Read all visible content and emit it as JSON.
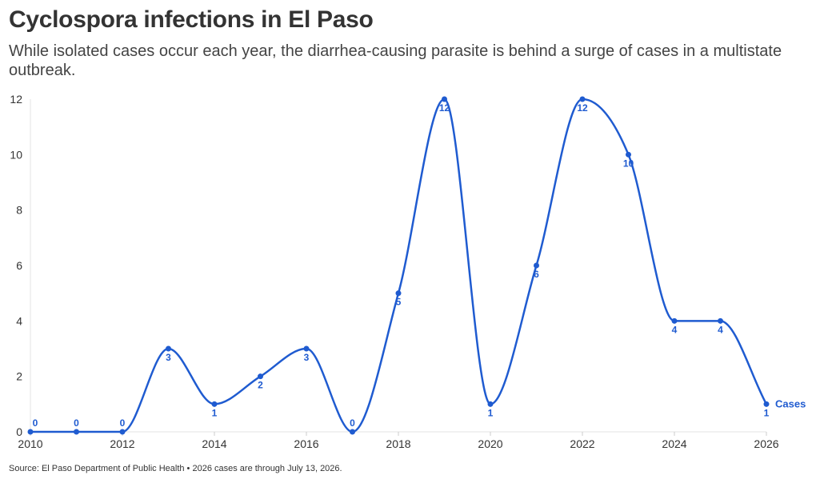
{
  "header": {
    "title": "Cyclospora infections in El Paso",
    "subtitle": "While isolated cases occur each year, the diarrhea-causing parasite is behind a surge of cases in a multistate outbreak."
  },
  "footer": {
    "source": "Source: El Paso Department of Public Health • 2026 cases are through July 13, 2026."
  },
  "chart_data": {
    "type": "line",
    "title": "Cyclospora infections in El Paso",
    "subtitle": "While isolated cases occur each year, the diarrhea-causing parasite is behind a surge of cases in a multistate outbreak.",
    "x": [
      2010,
      2011,
      2012,
      2013,
      2014,
      2015,
      2016,
      2017,
      2018,
      2019,
      2020,
      2021,
      2022,
      2023,
      2024,
      2025,
      2026
    ],
    "series": [
      {
        "name": "Cases",
        "values": [
          0,
          0,
          0,
          3,
          1,
          2,
          3,
          0,
          5,
          12,
          1,
          6,
          12,
          10,
          4,
          4,
          1
        ]
      }
    ],
    "xlim": [
      2010,
      2026
    ],
    "ylim": [
      0,
      12
    ],
    "xticks": [
      2010,
      2012,
      2014,
      2016,
      2018,
      2020,
      2022,
      2024,
      2026
    ],
    "yticks": [
      0,
      2,
      4,
      6,
      8,
      10,
      12
    ],
    "grid": false,
    "data_labels": true,
    "line_style": "smooth curve",
    "color": "#1f5bd0"
  }
}
